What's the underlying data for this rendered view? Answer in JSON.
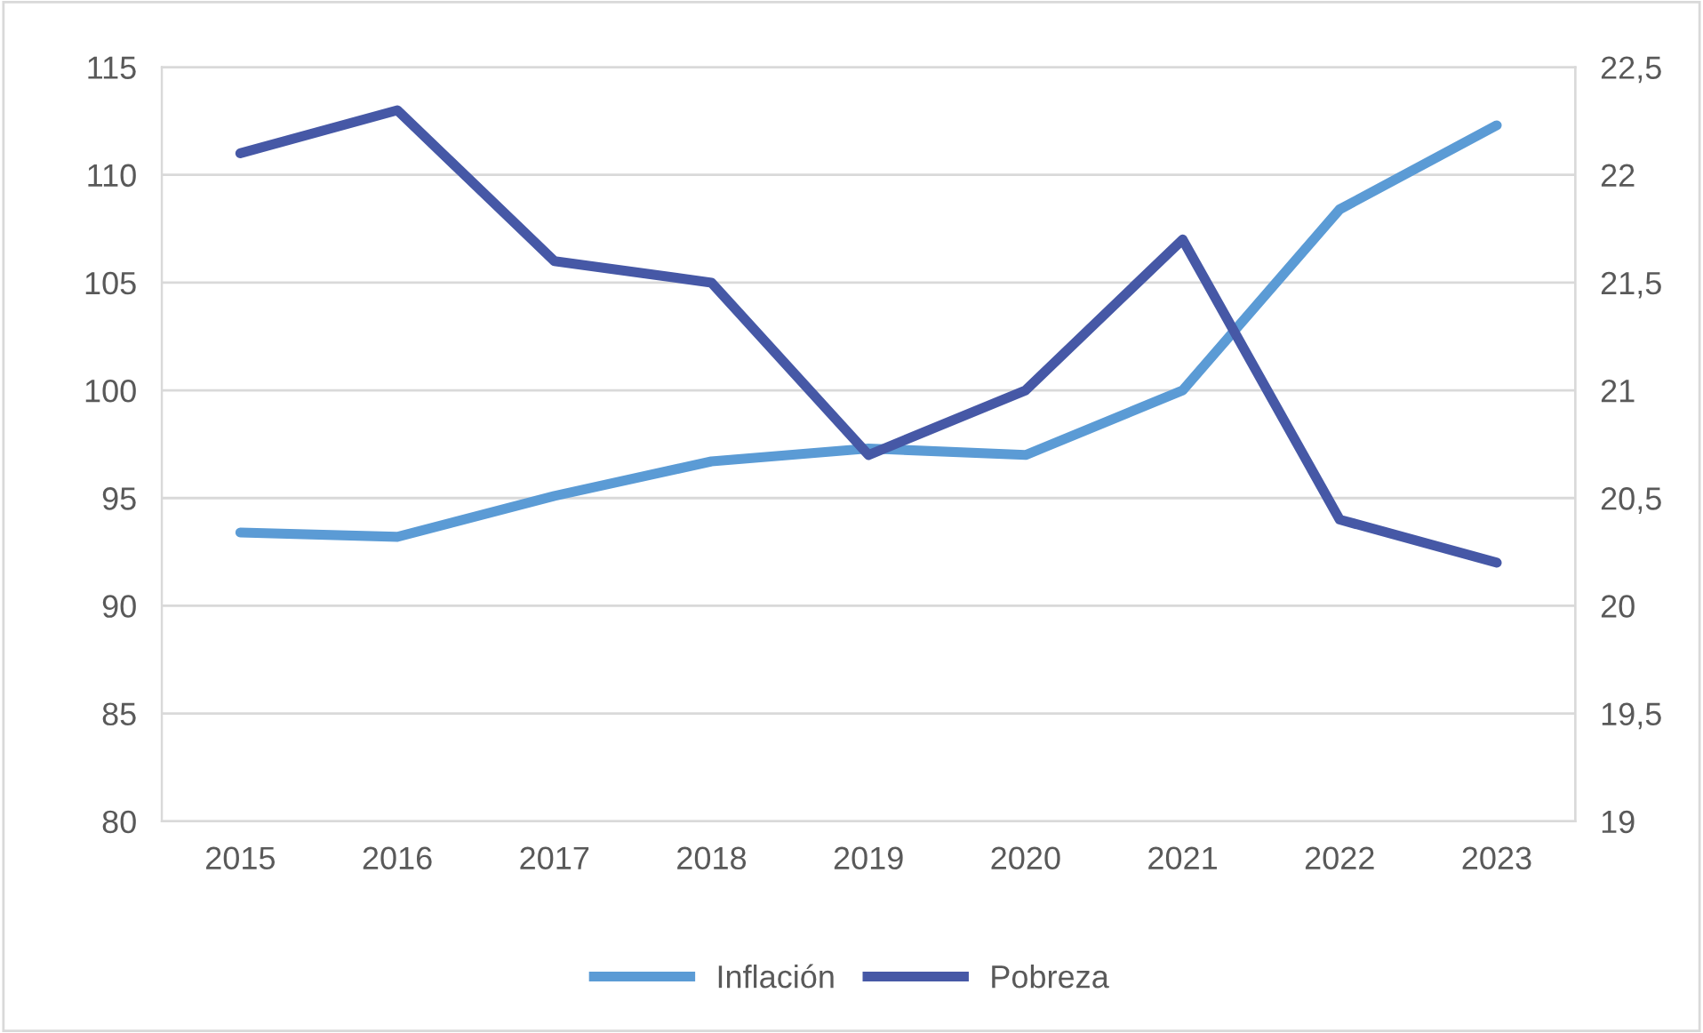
{
  "chart_data": {
    "type": "line",
    "categories": [
      "2015",
      "2016",
      "2017",
      "2018",
      "2019",
      "2020",
      "2021",
      "2022",
      "2023"
    ],
    "series": [
      {
        "name": "Inflación",
        "color": "#5b9bd5",
        "values": [
          93.4,
          93.2,
          95.1,
          96.7,
          97.3,
          97.0,
          100.0,
          108.4,
          112.3
        ]
      },
      {
        "name": "Pobreza",
        "color": "#4658a6",
        "axis": "y2",
        "values": [
          22.1,
          22.3,
          21.6,
          21.5,
          20.7,
          21.0,
          21.7,
          20.4,
          20.2
        ]
      }
    ],
    "ylim": [
      80,
      115
    ],
    "yticks": [
      80,
      85,
      90,
      95,
      100,
      105,
      110,
      115
    ],
    "y2lim": [
      19,
      22.5
    ],
    "y2ticks": [
      19,
      {
        "value": 19.5,
        "label": "19,5"
      },
      20,
      {
        "value": 20.5,
        "label": "20,5"
      },
      21,
      {
        "value": 21.5,
        "label": "21,5"
      },
      22,
      {
        "value": 22.5,
        "label": "22,5"
      }
    ],
    "grid": "y",
    "legend": "bottom",
    "marker": "none",
    "line_style": "solid"
  }
}
